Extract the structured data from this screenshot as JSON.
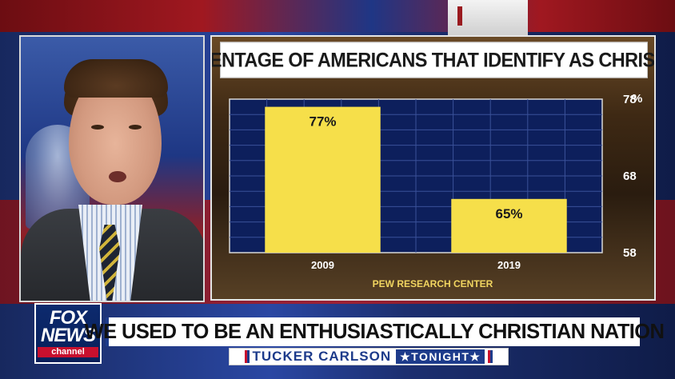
{
  "graphic": {
    "title": "PERCENTAGE OF AMERICANS THAT IDENTIFY AS CHRISTIANS",
    "source": "PEW RESEARCH CENTER"
  },
  "chart_data": {
    "type": "bar",
    "categories": [
      "2009",
      "2019"
    ],
    "values": [
      77,
      65
    ],
    "data_labels": [
      "77%",
      "65%"
    ],
    "title": "PERCENTAGE OF AMERICANS THAT IDENTIFY AS CHRISTIANS",
    "y_ticks": [
      "58",
      "68",
      "78"
    ],
    "y_unit": "%",
    "ylim": [
      58,
      78
    ],
    "grid": true,
    "bar_color": "#f6df4a",
    "background_color": "#0d1f5c"
  },
  "lower_third": {
    "logo_top": "FOX",
    "logo_middle": "NEWS",
    "logo_bottom": "channel",
    "headline": "WE USED TO BE AN ENTHUSIASTICALLY CHRISTIAN NATION",
    "show_name": "TUCKER CARLSON",
    "show_suffix": "★TONIGHT★"
  },
  "colors": {
    "brand_blue": "#1d3b8b",
    "brand_red": "#c8102e",
    "source_yellow": "#f1d560"
  }
}
